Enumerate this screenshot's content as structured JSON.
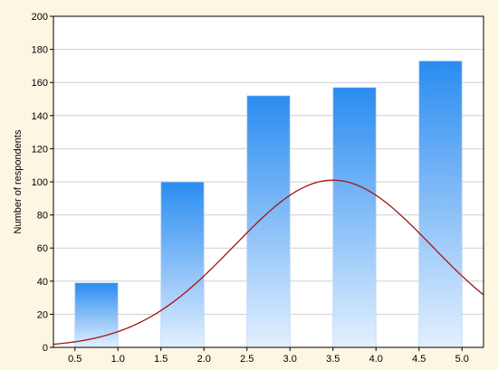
{
  "chart_data": {
    "type": "bar",
    "title": "",
    "xlabel": "",
    "ylabel": "Number of respondents",
    "categories": [
      "0.5–1.0",
      "1.5–2.0",
      "2.5–3.0",
      "3.5–4.0",
      "4.5–5.0"
    ],
    "bins": [
      [
        0.5,
        1.0
      ],
      [
        1.5,
        2.0
      ],
      [
        2.5,
        3.0
      ],
      [
        3.5,
        4.0
      ],
      [
        4.5,
        5.0
      ]
    ],
    "values": [
      39,
      100,
      152,
      157,
      173
    ],
    "xlim": [
      0.25,
      5.25
    ],
    "ylim": [
      0,
      200
    ],
    "xticks": [
      "0.5",
      "1.0",
      "1.5",
      "2.0",
      "2.5",
      "3.0",
      "3.5",
      "4.0",
      "4.5",
      "5.0"
    ],
    "yticks": [
      "0",
      "20",
      "40",
      "60",
      "80",
      "100",
      "120",
      "140",
      "160",
      "180",
      "200"
    ],
    "grid": true,
    "legend": "none",
    "bar_gradient": [
      "#2a8cf0",
      "#e3f0ff"
    ],
    "overlay_curve": {
      "type": "normal",
      "mean": 3.5,
      "peak": 101,
      "sd": 1.15,
      "color": "#a31515"
    }
  }
}
